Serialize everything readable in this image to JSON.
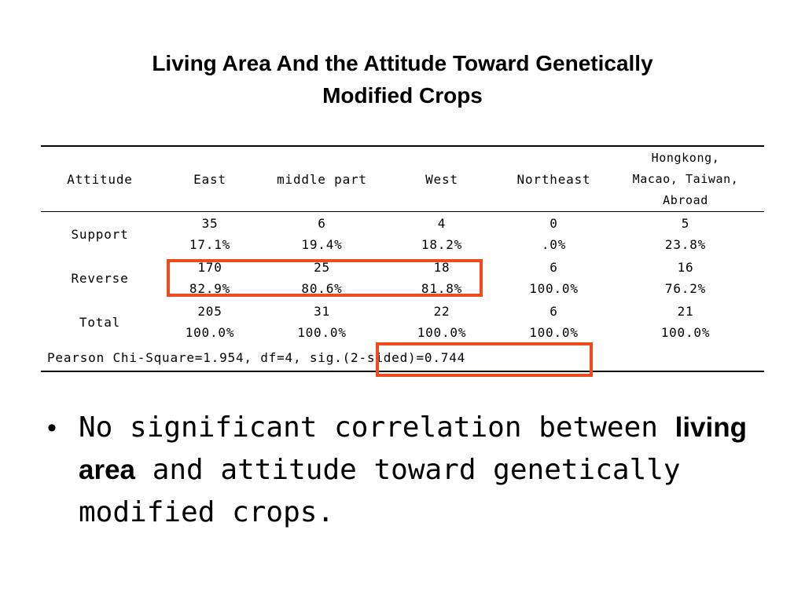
{
  "slide": {
    "title_line1": "Living Area And the Attitude Toward Genetically",
    "title_line2": "Modified Crops"
  },
  "table": {
    "headers": {
      "attitude": "Attitude",
      "east": "East",
      "middle": "middle part",
      "west": "West",
      "northeast": "Northeast",
      "abroad_line1": "Hongkong,",
      "abroad_line2": "Macao, Taiwan,",
      "abroad_line3": "Abroad"
    },
    "rows": [
      {
        "label": "Support",
        "cells": [
          {
            "count": "35",
            "pct": "17.1%"
          },
          {
            "count": "6",
            "pct": "19.4%"
          },
          {
            "count": "4",
            "pct": "18.2%"
          },
          {
            "count": "0",
            "pct": ".0%"
          },
          {
            "count": "5",
            "pct": "23.8%"
          }
        ]
      },
      {
        "label": "Reverse",
        "cells": [
          {
            "count": "170",
            "pct": "82.9%"
          },
          {
            "count": "25",
            "pct": "80.6%"
          },
          {
            "count": "18",
            "pct": "81.8%"
          },
          {
            "count": "6",
            "pct": "100.0%"
          },
          {
            "count": "16",
            "pct": "76.2%"
          }
        ]
      },
      {
        "label": "Total",
        "cells": [
          {
            "count": "205",
            "pct": "100.0%"
          },
          {
            "count": "31",
            "pct": "100.0%"
          },
          {
            "count": "22",
            "pct": "100.0%"
          },
          {
            "count": "6",
            "pct": "100.0%"
          },
          {
            "count": "21",
            "pct": "100.0%"
          }
        ]
      }
    ],
    "footer": {
      "chi_square": "Pearson Chi-Square=1.954, df=4, ",
      "significance": "sig.(2-sided)=0.744"
    }
  },
  "highlight": {
    "color": "#ee4b1e"
  },
  "bullet": {
    "marker": "•",
    "text_before": "No significant correlation between ",
    "bold_text": "living area",
    "text_after": " and attitude toward genetically modified crops."
  }
}
